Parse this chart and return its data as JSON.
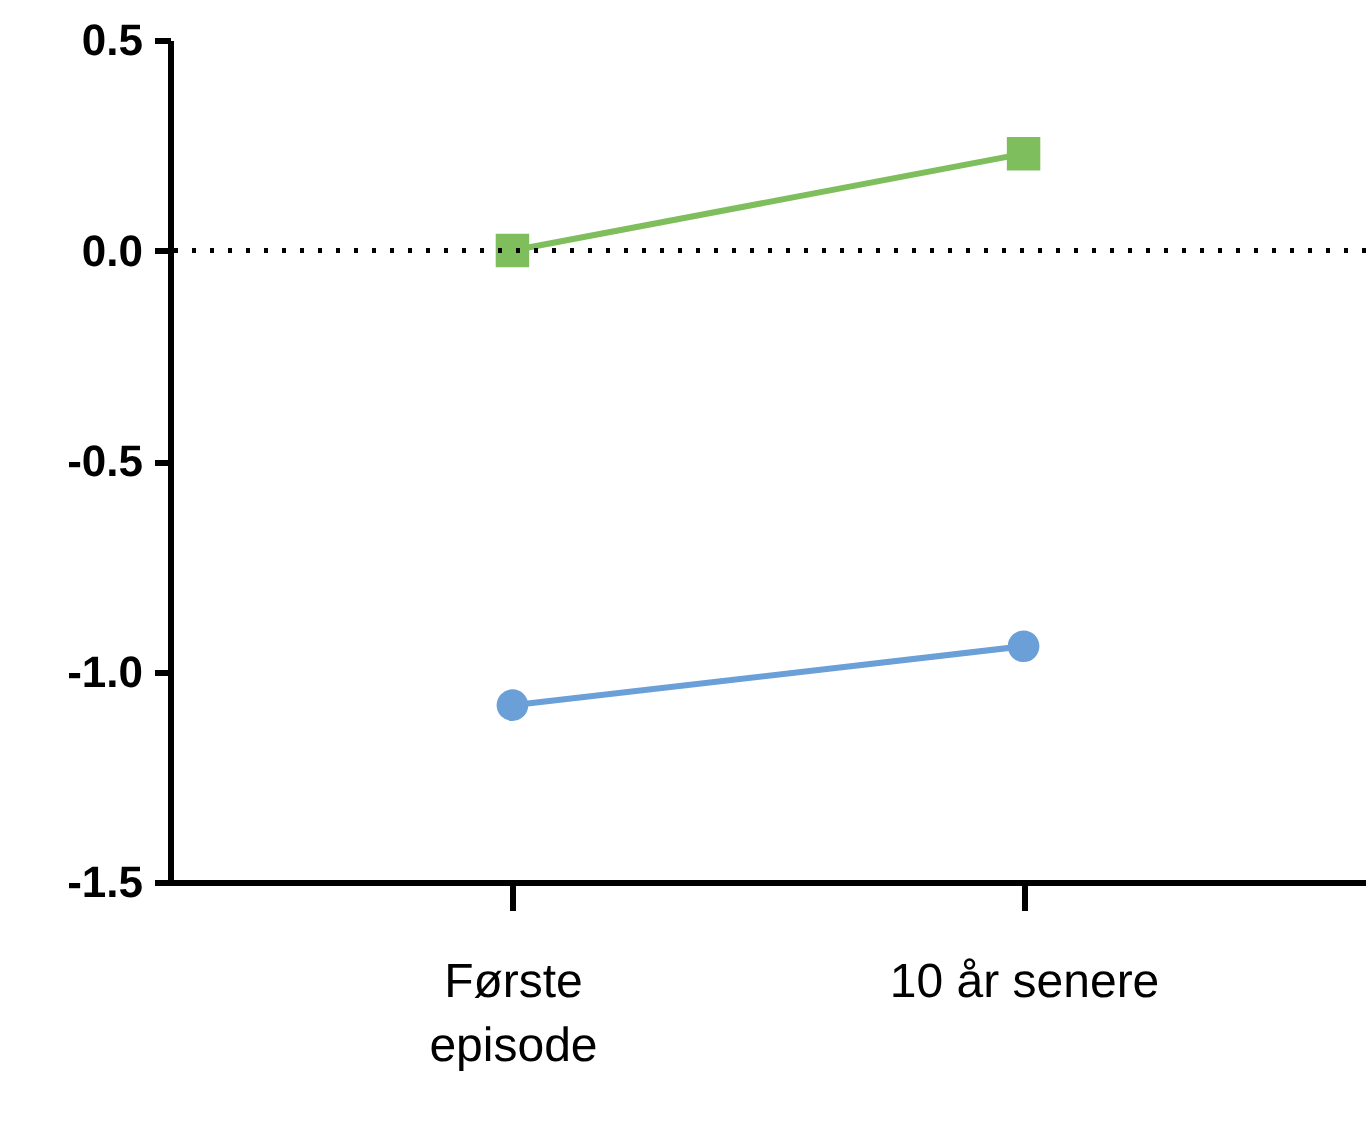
{
  "chart_data": {
    "type": "line",
    "categories": [
      "Første episode",
      "10 år senere"
    ],
    "series": [
      {
        "color": "#7fbe5c",
        "marker": "square",
        "values": [
          0.0,
          0.23
        ]
      },
      {
        "color": "#6a9fd8",
        "marker": "circle",
        "values": [
          -1.08,
          -0.94
        ]
      }
    ],
    "ylim": [
      -1.5,
      0.5
    ],
    "yticks": [
      {
        "value": -1.5,
        "label": "-1.5"
      },
      {
        "value": -1,
        "label": "-1.0"
      },
      {
        "value": -0.5,
        "label": "-0.5"
      },
      {
        "value": 0,
        "label": "0.0"
      },
      {
        "value": 0.5,
        "label": "0.5"
      }
    ],
    "ref_lines": [
      {
        "axis": "y",
        "value": 0,
        "color": "#000000",
        "line_style": "dotted"
      }
    ],
    "grid": false
  }
}
